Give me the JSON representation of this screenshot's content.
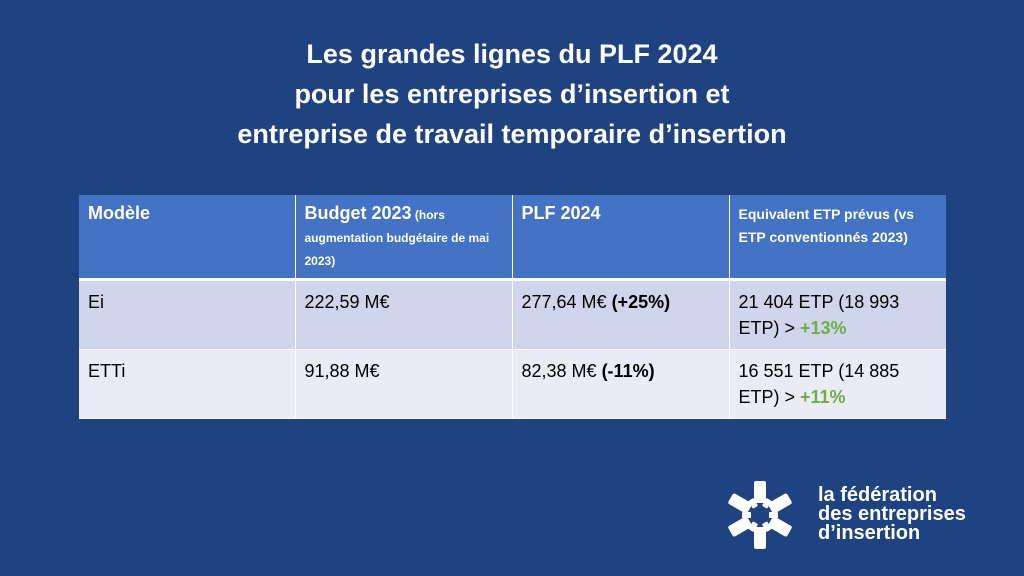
{
  "title": {
    "line1": "Les grandes lignes du PLF 2024",
    "line2": "pour les entreprises d’insertion et",
    "line3": "entreprise de travail temporaire d’insertion"
  },
  "table": {
    "headers": {
      "model": "Modèle",
      "budget_main": "Budget 2023",
      "budget_note": " (hors augmentation budgétaire de mai 2023)",
      "plf": "PLF 2024",
      "etp": "Equivalent ETP prévus (vs ETP conventionnés 2023)"
    },
    "rows": [
      {
        "model": "Ei",
        "budget": "222,59 M€",
        "plf_value": "277,64 M€ ",
        "plf_change": "(+25%)",
        "etp_text": "21 404 ETP (18 993 ETP) > ",
        "etp_change": "+13%"
      },
      {
        "model": "ETTi",
        "budget": "91,88 M€",
        "plf_value": "82,38 M€ ",
        "plf_change": "(-11%)",
        "etp_text": "16 551 ETP (14 885 ETP) > ",
        "etp_change": "+11%"
      }
    ]
  },
  "logo": {
    "line1": "la fédération",
    "line2": "des entreprises",
    "line3": "d’insertion",
    "icon": "asterisk-star-icon"
  },
  "colors": {
    "background": "#1f4280",
    "header": "#4472c4",
    "row1": "#cfd5ea",
    "row2": "#e9ebf5",
    "positive": "#70ad47"
  }
}
